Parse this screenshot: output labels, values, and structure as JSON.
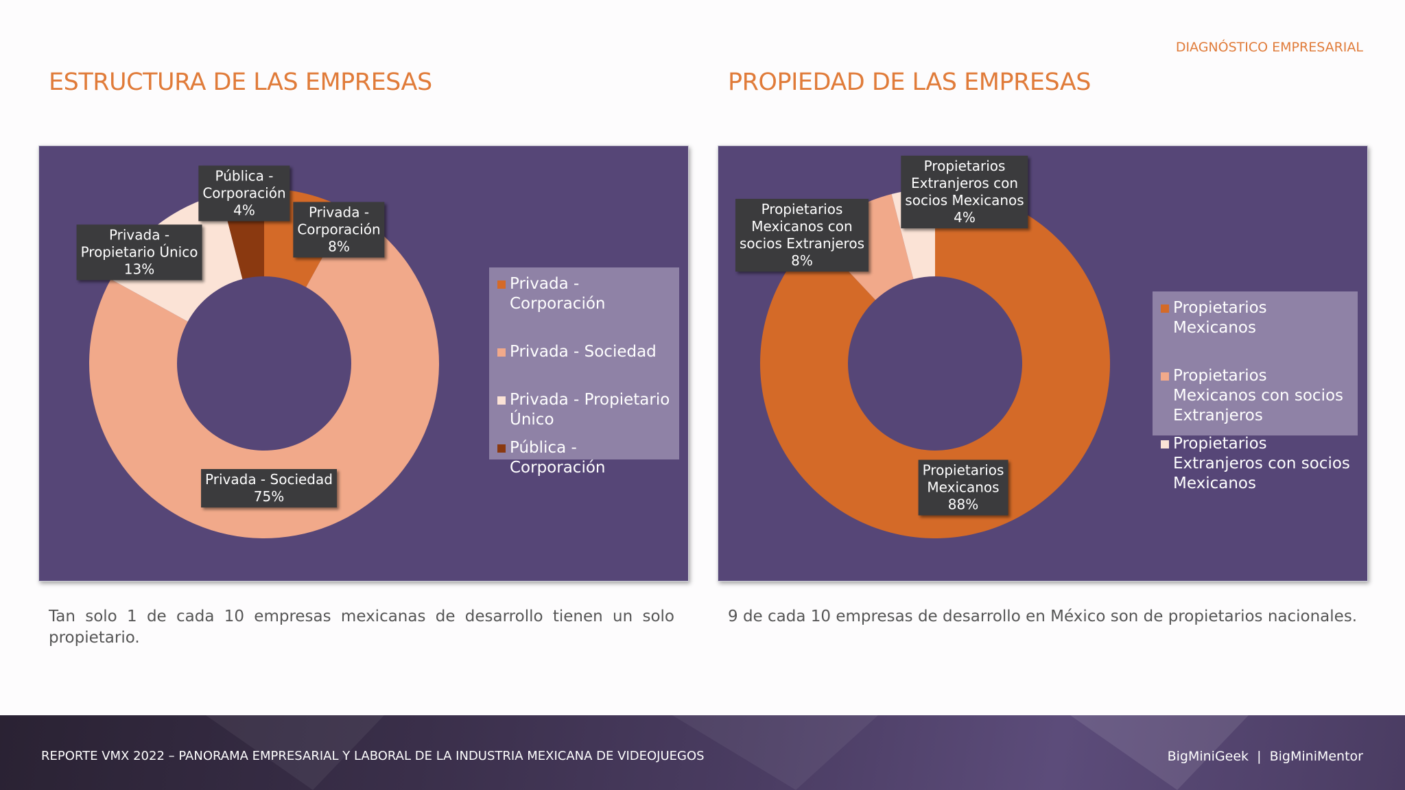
{
  "header": {
    "section": "DIAGNÓSTICO EMPRESARIAL"
  },
  "left": {
    "title": "ESTRUCTURA DE LAS EMPRESAS",
    "caption": "Tan solo 1 de cada 10 empresas mexicanas de desarrollo tienen un solo propietario.",
    "labels": [
      {
        "name": "Privada -",
        "name2": "Corporación",
        "pct": "8%"
      },
      {
        "name": "Privada - Sociedad",
        "pct": "75%"
      },
      {
        "name": "Privada -",
        "name2": "Propietario Único",
        "pct": "13%"
      },
      {
        "name": "Pública -",
        "name2": "Corporación",
        "pct": "4%"
      }
    ],
    "legend": [
      "Privada - Corporación",
      "Privada - Sociedad",
      "Privada - Propietario Único",
      "Pública - Corporación"
    ]
  },
  "right": {
    "title": "PROPIEDAD DE LAS EMPRESAS",
    "caption": "9 de cada 10 empresas de desarrollo en México son de propietarios nacionales.",
    "labels": [
      {
        "l1": "Propietarios",
        "l2": "Mexicanos",
        "pct": "88%"
      },
      {
        "l1": "Propietarios",
        "l2": "Mexicanos con",
        "l3": "socios Extranjeros",
        "pct": "8%"
      },
      {
        "l1": "Propietarios",
        "l2": "Extranjeros con",
        "l3": "socios Mexicanos",
        "pct": "4%"
      }
    ],
    "legend": [
      "Propietarios Mexicanos",
      "Propietarios Mexicanos con socios Extranjeros",
      "Propietarios Extranjeros con socios Mexicanos"
    ]
  },
  "chart_data": [
    {
      "type": "pie",
      "title": "ESTRUCTURA DE LAS EMPRESAS",
      "categories": [
        "Privada - Corporación",
        "Privada - Sociedad",
        "Privada - Propietario Único",
        "Pública - Corporación"
      ],
      "values": [
        8,
        75,
        13,
        4
      ],
      "colors": [
        "#d46a28",
        "#f1a98a",
        "#fbe3d6",
        "#8a3910"
      ],
      "legend": "right"
    },
    {
      "type": "pie",
      "title": "PROPIEDAD DE LAS EMPRESAS",
      "categories": [
        "Propietarios Mexicanos",
        "Propietarios Mexicanos con socios Extranjeros",
        "Propietarios Extranjeros con socios Mexicanos"
      ],
      "values": [
        88,
        8,
        4
      ],
      "colors": [
        "#d46a28",
        "#f1a98a",
        "#fbe3d6"
      ],
      "legend": "right"
    }
  ],
  "footer": {
    "report": "REPORTE VMX 2022 – PANORAMA EMPRESARIAL Y LABORAL DE LA INDUSTRIA MEXICANA DE VIDEOJUEGOS",
    "brand": "BigMiniGeek  |  BigMiniMentor"
  }
}
